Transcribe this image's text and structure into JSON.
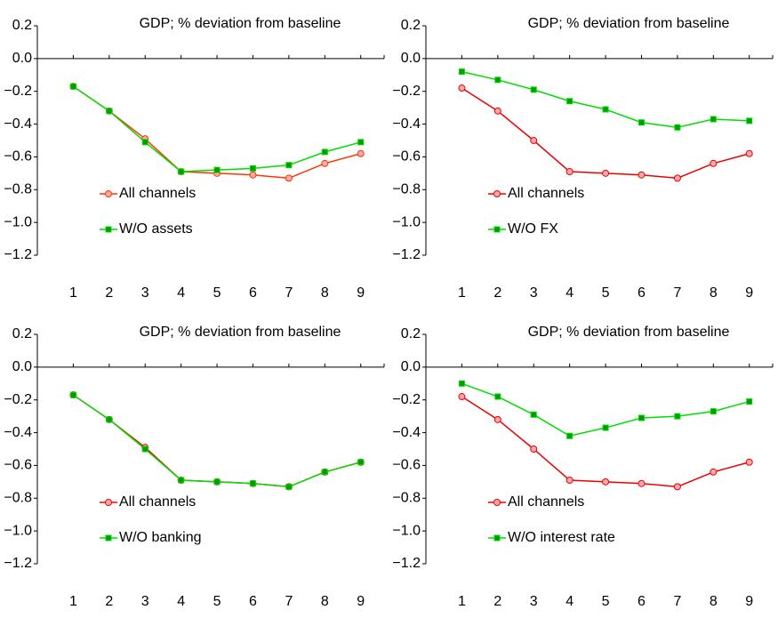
{
  "chart_data": [
    {
      "type": "line",
      "title": "GDP; % deviation from baseline",
      "x": [
        1,
        2,
        3,
        4,
        5,
        6,
        7,
        8,
        9
      ],
      "xlim": [
        0,
        9.65
      ],
      "xticks": [
        1,
        2,
        3,
        4,
        5,
        6,
        7,
        8,
        9
      ],
      "ylim": [
        -1.2,
        0.2
      ],
      "yticks": [
        {
          "value": 0.2,
          "label": "0.2"
        },
        {
          "value": 0,
          "label": "0.0"
        },
        {
          "value": -0.2,
          "label": "−0.2"
        },
        {
          "value": -0.4,
          "label": "−0.4"
        },
        {
          "value": -0.6,
          "label": "−0.6"
        },
        {
          "value": -0.8,
          "label": "−0.8"
        },
        {
          "value": -1.0,
          "label": "−1.0"
        },
        {
          "value": -1.2,
          "label": "−1.2"
        }
      ],
      "legend": "lower left",
      "series": [
        {
          "name": "All channels",
          "color": "#ff3300",
          "marker": "circle",
          "values": [
            -0.17,
            -0.32,
            -0.49,
            -0.69,
            -0.7,
            -0.71,
            -0.73,
            -0.64,
            -0.58
          ]
        },
        {
          "name": "W/O assets",
          "color": "#00dd00",
          "marker": "square",
          "values": [
            -0.17,
            -0.32,
            -0.51,
            -0.69,
            -0.68,
            -0.67,
            -0.65,
            -0.57,
            -0.51
          ]
        }
      ]
    },
    {
      "type": "line",
      "title": "GDP; % deviation from baseline",
      "x": [
        1,
        2,
        3,
        4,
        5,
        6,
        7,
        8,
        9
      ],
      "xlim": [
        0,
        9.65
      ],
      "xticks": [
        1,
        2,
        3,
        4,
        5,
        6,
        7,
        8,
        9
      ],
      "ylim": [
        -1.2,
        0.2
      ],
      "yticks": [
        {
          "value": 0.2,
          "label": "0.2"
        },
        {
          "value": 0,
          "label": "0.0"
        },
        {
          "value": -0.2,
          "label": "−0.2"
        },
        {
          "value": -0.4,
          "label": "−0.4"
        },
        {
          "value": -0.6,
          "label": "−0.6"
        },
        {
          "value": -0.8,
          "label": "−0.8"
        },
        {
          "value": -1.0,
          "label": "−1.0"
        },
        {
          "value": -1.2,
          "label": "−1.2"
        }
      ],
      "legend": "lower left",
      "series": [
        {
          "name": "All channels",
          "color": "#ee0000",
          "marker": "circle",
          "values": [
            -0.18,
            -0.32,
            -0.5,
            -0.69,
            -0.7,
            -0.71,
            -0.73,
            -0.64,
            -0.58
          ]
        },
        {
          "name": "W/O FX",
          "color": "#00dd00",
          "marker": "square",
          "values": [
            -0.08,
            -0.13,
            -0.19,
            -0.26,
            -0.31,
            -0.39,
            -0.42,
            -0.37,
            -0.38
          ]
        }
      ]
    },
    {
      "type": "line",
      "title": "GDP; % deviation from baseline",
      "x": [
        1,
        2,
        3,
        4,
        5,
        6,
        7,
        8,
        9
      ],
      "xlim": [
        0,
        9.65
      ],
      "xticks": [
        1,
        2,
        3,
        4,
        5,
        6,
        7,
        8,
        9
      ],
      "ylim": [
        -1.2,
        0.2
      ],
      "yticks": [
        {
          "value": 0.2,
          "label": "0.2"
        },
        {
          "value": 0,
          "label": "0.0"
        },
        {
          "value": -0.2,
          "label": "−0.2"
        },
        {
          "value": -0.4,
          "label": "−0.4"
        },
        {
          "value": -0.6,
          "label": "−0.6"
        },
        {
          "value": -0.8,
          "label": "−0.8"
        },
        {
          "value": -1.0,
          "label": "−1.0"
        },
        {
          "value": -1.2,
          "label": "−1.2"
        }
      ],
      "legend": "lower left",
      "series": [
        {
          "name": "All channels",
          "color": "#ee0000",
          "marker": "circle",
          "values": [
            -0.17,
            -0.32,
            -0.49,
            -0.69,
            -0.7,
            -0.71,
            -0.73,
            -0.64,
            -0.58
          ]
        },
        {
          "name": "W/O banking",
          "color": "#00dd00",
          "marker": "square",
          "values": [
            -0.17,
            -0.32,
            -0.5,
            -0.69,
            -0.7,
            -0.71,
            -0.73,
            -0.64,
            -0.58
          ]
        }
      ]
    },
    {
      "type": "line",
      "title": "GDP; % deviation from baseline",
      "x": [
        1,
        2,
        3,
        4,
        5,
        6,
        7,
        8,
        9
      ],
      "xlim": [
        0,
        9.65
      ],
      "xticks": [
        1,
        2,
        3,
        4,
        5,
        6,
        7,
        8,
        9
      ],
      "ylim": [
        -1.2,
        0.2
      ],
      "yticks": [
        {
          "value": 0.2,
          "label": "0.2"
        },
        {
          "value": 0,
          "label": "0.0"
        },
        {
          "value": -0.2,
          "label": "−0.2"
        },
        {
          "value": -0.4,
          "label": "−0.4"
        },
        {
          "value": -0.6,
          "label": "−0.6"
        },
        {
          "value": -0.8,
          "label": "−0.8"
        },
        {
          "value": -1.0,
          "label": "−1.0"
        },
        {
          "value": -1.2,
          "label": "−1.2"
        }
      ],
      "legend": "lower left",
      "series": [
        {
          "name": "All channels",
          "color": "#ee0000",
          "marker": "circle",
          "values": [
            -0.18,
            -0.32,
            -0.5,
            -0.69,
            -0.7,
            -0.71,
            -0.73,
            -0.64,
            -0.58
          ]
        },
        {
          "name": "W/O interest rate",
          "color": "#00dd00",
          "marker": "square",
          "values": [
            -0.1,
            -0.18,
            -0.29,
            -0.42,
            -0.37,
            -0.31,
            -0.3,
            -0.27,
            -0.21
          ]
        }
      ]
    }
  ]
}
